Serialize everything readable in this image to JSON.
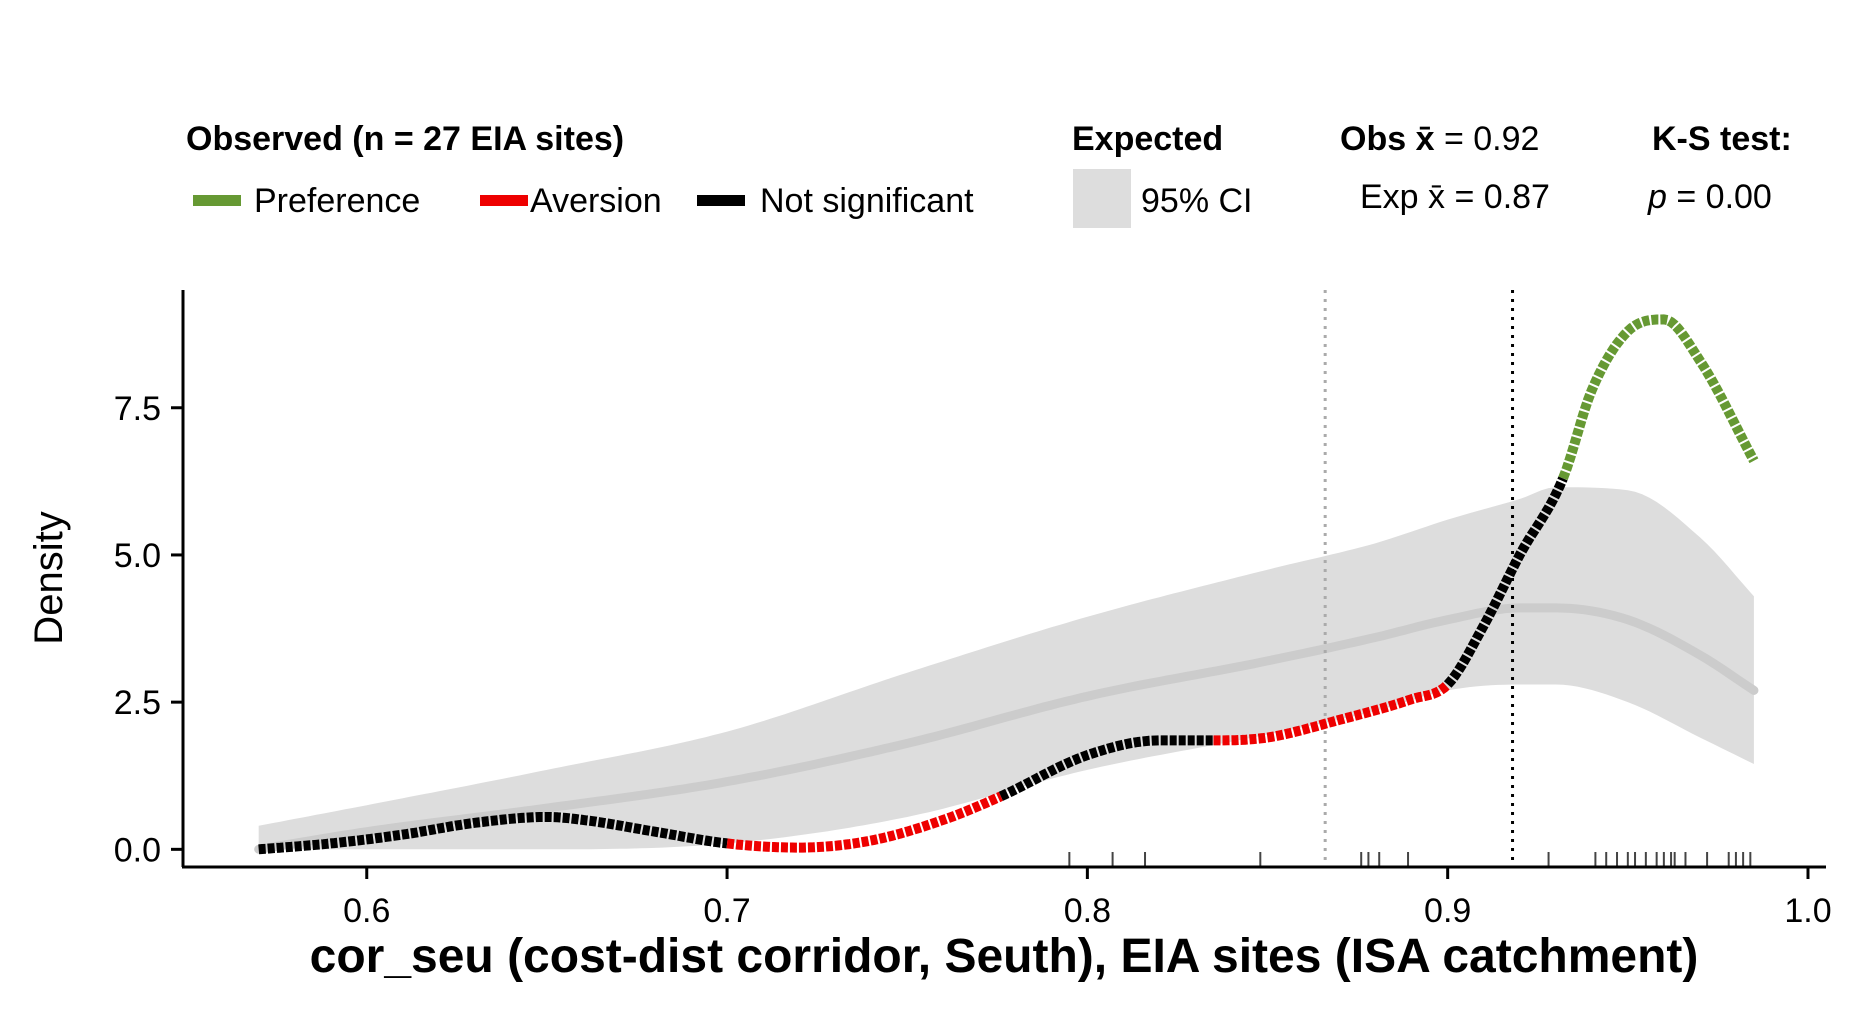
{
  "legend": {
    "observed_title": "Observed (n = 27 EIA sites)",
    "observed_items": [
      {
        "label": "Preference",
        "color": "#669933"
      },
      {
        "label": "Aversion",
        "color": "#ee0000"
      },
      {
        "label": "Not significant",
        "color": "#000000"
      }
    ],
    "expected_title": "Expected",
    "expected_item": "95% CI",
    "expected_color": "#dddddd",
    "obs_mean_prefix": "Obs ",
    "obs_mean_symbol": "x̄",
    "obs_mean_value": " = 0.92",
    "exp_mean_prefix": "Exp ",
    "exp_mean_symbol": "x̄",
    "exp_mean_value": " = 0.87",
    "ks_title": "K-S test:",
    "ks_p_symbol": "p",
    "ks_p_value": " = 0.00"
  },
  "chart_data": {
    "type": "line",
    "xlabel": "cor_seu (cost-dist corridor, Seuth), EIA sites (ISA catchment)",
    "ylabel": "Density",
    "xlim": [
      0.549,
      1.005
    ],
    "ylim": [
      -0.3,
      9.5
    ],
    "x_ticks": [
      "0.6",
      "0.7",
      "0.8",
      "0.9",
      "1.0"
    ],
    "y_ticks": [
      "0.0",
      "2.5",
      "5.0",
      "7.5"
    ],
    "grid": false,
    "obs_mean": 0.918,
    "exp_mean": 0.866,
    "observed_density": {
      "x": [
        0.57,
        0.59,
        0.61,
        0.63,
        0.65,
        0.66,
        0.68,
        0.7,
        0.72,
        0.74,
        0.76,
        0.776,
        0.8,
        0.82,
        0.835,
        0.85,
        0.87,
        0.89,
        0.9,
        0.91,
        0.92,
        0.932,
        0.94,
        0.95,
        0.96,
        0.97,
        0.985
      ],
      "y": [
        0.0,
        0.1,
        0.25,
        0.45,
        0.55,
        0.5,
        0.3,
        0.1,
        0.03,
        0.15,
        0.5,
        0.9,
        1.6,
        1.85,
        1.85,
        1.9,
        2.2,
        2.55,
        2.8,
        3.8,
        5.0,
        6.3,
        7.8,
        8.8,
        9.0,
        8.3,
        6.6
      ],
      "segments": [
        {
          "from": 0.57,
          "to": 0.7,
          "status": "Not significant"
        },
        {
          "from": 0.7,
          "to": 0.776,
          "status": "Aversion"
        },
        {
          "from": 0.776,
          "to": 0.835,
          "status": "Not significant"
        },
        {
          "from": 0.835,
          "to": 0.9,
          "status": "Aversion"
        },
        {
          "from": 0.9,
          "to": 0.932,
          "status": "Not significant"
        },
        {
          "from": 0.932,
          "to": 0.985,
          "status": "Preference"
        }
      ]
    },
    "expected_density": {
      "x": [
        0.57,
        0.6,
        0.65,
        0.7,
        0.75,
        0.8,
        0.85,
        0.88,
        0.9,
        0.92,
        0.93,
        0.95,
        0.97,
        0.985
      ],
      "y_mean": [
        0.0,
        0.3,
        0.7,
        1.15,
        1.8,
        2.6,
        3.2,
        3.6,
        3.9,
        4.1,
        4.1,
        3.9,
        3.3,
        2.7
      ],
      "y_lower": [
        0.0,
        0.0,
        0.0,
        0.1,
        0.55,
        1.35,
        1.95,
        2.35,
        2.7,
        2.8,
        2.8,
        2.5,
        1.9,
        1.45
      ],
      "y_upper": [
        0.4,
        0.75,
        1.35,
        2.0,
        3.0,
        3.95,
        4.75,
        5.2,
        5.6,
        5.95,
        6.15,
        6.1,
        5.3,
        4.3
      ]
    },
    "rug_x": [
      0.795,
      0.807,
      0.816,
      0.848,
      0.876,
      0.878,
      0.881,
      0.889,
      0.928,
      0.941,
      0.944,
      0.947,
      0.95,
      0.952,
      0.955,
      0.958,
      0.96,
      0.962,
      0.963,
      0.966,
      0.972,
      0.978,
      0.98,
      0.982,
      0.984
    ]
  }
}
